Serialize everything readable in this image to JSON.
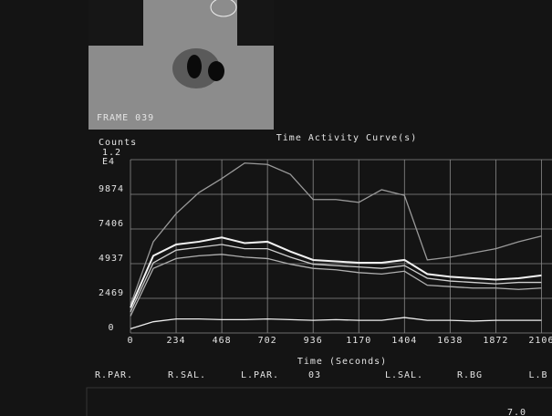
{
  "frame_label": "FRAME  039",
  "bottom_text": "7.0",
  "chart_data": {
    "type": "line",
    "title": "Time Activity Curve(s)",
    "y_label": "Counts",
    "x_label": "Time  (Seconds)",
    "xlim": [
      0,
      2160
    ],
    "ylim": [
      0,
      12343
    ],
    "xticks": [
      0,
      234,
      468,
      702,
      936,
      1170,
      1404,
      1638,
      1872,
      2106
    ],
    "yticks": [
      0,
      2469,
      4937,
      7406,
      9874,
      {
        "value": 12343,
        "label": "1.2 E4"
      }
    ],
    "grid": true,
    "x": [
      0,
      117,
      234,
      351,
      468,
      585,
      702,
      819,
      936,
      1053,
      1170,
      1287,
      1404,
      1521,
      1638,
      1755,
      1872,
      1989,
      2106
    ],
    "series": [
      {
        "color": "#9a9a9a",
        "values": [
          2000,
          6500,
          8500,
          10000,
          11000,
          12100,
          12000,
          11300,
          9500,
          9500,
          9300,
          10200,
          9800,
          5200,
          5400,
          5700,
          6000,
          6500,
          6900
        ]
      },
      {
        "color": "#f2f2f2",
        "values": [
          1800,
          5500,
          6300,
          6500,
          6800,
          6400,
          6500,
          5800,
          5200,
          5100,
          5000,
          5000,
          5200,
          4200,
          4000,
          3900,
          3800,
          3900,
          4100
        ]
      },
      {
        "color": "#d0d0d0",
        "values": [
          1500,
          5000,
          5900,
          6100,
          6300,
          6000,
          6000,
          5400,
          4900,
          4800,
          4700,
          4600,
          4800,
          3900,
          3700,
          3600,
          3500,
          3600,
          3600
        ]
      },
      {
        "color": "#b0b0b0",
        "values": [
          1200,
          4600,
          5300,
          5500,
          5600,
          5400,
          5300,
          4900,
          4600,
          4500,
          4300,
          4200,
          4400,
          3400,
          3300,
          3200,
          3200,
          3100,
          3200
        ]
      },
      {
        "color": "#eeeeee",
        "values": [
          300,
          800,
          1000,
          1000,
          950,
          950,
          1000,
          950,
          900,
          950,
          900,
          900,
          1100,
          900,
          900,
          850,
          900,
          900,
          900
        ]
      }
    ],
    "legend": [
      {
        "label": "R.PAR.",
        "dim": true
      },
      {
        "label": "R.SAL.",
        "dim": false
      },
      {
        "label": "L.PAR.",
        "dim": false
      },
      {
        "label": "03",
        "dim": false
      },
      {
        "label": "L.SAL.",
        "dim": false
      },
      {
        "label": "R.BG",
        "dim": true
      },
      {
        "label": "L.B",
        "dim": false
      }
    ]
  }
}
